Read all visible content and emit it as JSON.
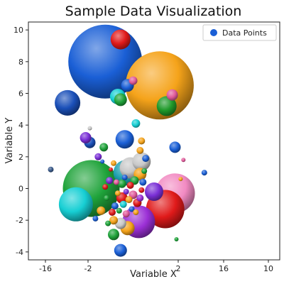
{
  "chart_data": {
    "type": "scatter",
    "title": "Sample Data Visualization",
    "xlabel": "Variable X",
    "ylabel": "Variable Y",
    "x_ticks": [
      "-16",
      "-2",
      "2",
      "16",
      "10"
    ],
    "y_ticks": [
      -4,
      -2,
      0,
      2,
      4,
      6,
      8,
      10
    ],
    "ylim": [
      -4.5,
      10.5
    ],
    "legend": {
      "label": "Data Points",
      "placement": "top-right",
      "color": "#1a5fd6"
    },
    "grid": false,
    "x_scale": "irregular tick labels",
    "points": [
      {
        "x": -3.5,
        "y": 8.0,
        "size": 52,
        "color": "#1a5fd6"
      },
      {
        "x": 0.4,
        "y": 6.5,
        "size": 48,
        "color": "#f5a31a"
      },
      {
        "x": -4.5,
        "y": 0.0,
        "size": 40,
        "color": "#1fa33a"
      },
      {
        "x": 0.8,
        "y": -1.3,
        "size": 27,
        "color": "#e01a1a"
      },
      {
        "x": -5.6,
        "y": -1.0,
        "size": 24,
        "color": "#17cfd4"
      },
      {
        "x": 1.5,
        "y": -0.3,
        "size": 28,
        "color": "#f28ac2"
      },
      {
        "x": -1.1,
        "y": -2.1,
        "size": 23,
        "color": "#9b2fd6"
      },
      {
        "x": -6.2,
        "y": 5.4,
        "size": 18,
        "color": "#1a4fb8"
      },
      {
        "x": -2.0,
        "y": 1.0,
        "size": 18,
        "color": "#1ea0b0"
      },
      {
        "x": -2.4,
        "y": 9.4,
        "size": 14,
        "color": "#e01a1a"
      },
      {
        "x": 0.9,
        "y": 5.2,
        "size": 14,
        "color": "#1f9a2a"
      },
      {
        "x": -2.1,
        "y": 3.1,
        "size": 13,
        "color": "#1a5fd6"
      },
      {
        "x": -1.7,
        "y": 1.3,
        "size": 15,
        "color": "#c8c8c8"
      },
      {
        "x": -0.9,
        "y": 1.7,
        "size": 13,
        "color": "#c8c8c8"
      },
      {
        "x": -2.6,
        "y": 5.8,
        "size": 11,
        "color": "#17cfd4"
      },
      {
        "x": 0.0,
        "y": -0.2,
        "size": 13,
        "color": "#7a2fd6"
      },
      {
        "x": -1.9,
        "y": -2.5,
        "size": 10,
        "color": "#f5a31a"
      },
      {
        "x": 1.3,
        "y": 5.9,
        "size": 8,
        "color": "#e05a9a"
      },
      {
        "x": 1.5,
        "y": 2.6,
        "size": 8,
        "color": "#1a5fd6"
      },
      {
        "x": -4.6,
        "y": 2.9,
        "size": 8,
        "color": "#1a4fb8"
      },
      {
        "x": -4.9,
        "y": 3.2,
        "size": 8,
        "color": "#7a2fd6"
      },
      {
        "x": -3.6,
        "y": 2.6,
        "size": 6,
        "color": "#1fa33a"
      },
      {
        "x": -1.9,
        "y": 6.5,
        "size": 9,
        "color": "#1a5fd6"
      },
      {
        "x": -2.4,
        "y": 5.6,
        "size": 9,
        "color": "#1fa33a"
      },
      {
        "x": -1.0,
        "y": 0.9,
        "size": 9,
        "color": "#f5a31a"
      },
      {
        "x": -2.3,
        "y": -0.6,
        "size": 8,
        "color": "#e01a1a"
      },
      {
        "x": -2.4,
        "y": -2.2,
        "size": 8,
        "color": "#c8c8c8"
      },
      {
        "x": -2.9,
        "y": -2.9,
        "size": 8,
        "color": "#1fa33a"
      },
      {
        "x": -2.4,
        "y": -3.9,
        "size": 9,
        "color": "#1a5fd6"
      },
      {
        "x": -3.8,
        "y": -1.4,
        "size": 6,
        "color": "#f5a31a"
      },
      {
        "x": -2.9,
        "y": -2.0,
        "size": 6,
        "color": "#f5a31a"
      },
      {
        "x": -1.5,
        "y": 6.8,
        "size": 6,
        "color": "#e05a9a"
      },
      {
        "x": -1.3,
        "y": 4.1,
        "size": 6,
        "color": "#17cfd4"
      },
      {
        "x": -2.3,
        "y": 0.3,
        "size": 6,
        "color": "#1fa33a"
      },
      {
        "x": -1.5,
        "y": -0.4,
        "size": 6,
        "color": "#e05a9a"
      },
      {
        "x": -1.4,
        "y": 0.5,
        "size": 6,
        "color": "#1fa33a"
      },
      {
        "x": -1.2,
        "y": -0.9,
        "size": 6,
        "color": "#e01a1a"
      },
      {
        "x": -2.2,
        "y": -1.0,
        "size": 5,
        "color": "#17cfd4"
      },
      {
        "x": -2.0,
        "y": -1.6,
        "size": 5,
        "color": "#e05a9a"
      },
      {
        "x": -2.8,
        "y": -1.1,
        "size": 5,
        "color": "#1a5fd6"
      },
      {
        "x": -3.0,
        "y": -1.5,
        "size": 5,
        "color": "#e01a1a"
      },
      {
        "x": -1.8,
        "y": -0.7,
        "size": 5,
        "color": "#f5a31a"
      },
      {
        "x": -3.2,
        "y": 0.5,
        "size": 5,
        "color": "#7a2fd6"
      },
      {
        "x": -1.7,
        "y": 0.2,
        "size": 5,
        "color": "#e01a1a"
      },
      {
        "x": -1.0,
        "y": -0.6,
        "size": 5,
        "color": "#9b2fd6"
      },
      {
        "x": -0.8,
        "y": 0.4,
        "size": 5,
        "color": "#1a5fd6"
      },
      {
        "x": -3.4,
        "y": -0.6,
        "size": 4,
        "color": "#1fa33a"
      },
      {
        "x": -2.6,
        "y": -0.3,
        "size": 4,
        "color": "#f5a31a"
      },
      {
        "x": -2.0,
        "y": -0.2,
        "size": 4,
        "color": "#7a2fd6"
      },
      {
        "x": -2.7,
        "y": 0.4,
        "size": 4,
        "color": "#e05a9a"
      },
      {
        "x": -1.6,
        "y": -1.3,
        "size": 4,
        "color": "#1a5fd6"
      },
      {
        "x": -2.5,
        "y": -1.4,
        "size": 4,
        "color": "#1fa33a"
      },
      {
        "x": -3.3,
        "y": -2.2,
        "size": 4,
        "color": "#1fa33a"
      },
      {
        "x": -1.3,
        "y": -1.5,
        "size": 4,
        "color": "#f5a31a"
      },
      {
        "x": -0.9,
        "y": -0.1,
        "size": 4,
        "color": "#e01a1a"
      },
      {
        "x": -3.5,
        "y": 0.1,
        "size": 4,
        "color": "#e01a1a"
      },
      {
        "x": -2.1,
        "y": 0.7,
        "size": 4,
        "color": "#1a5fd6"
      },
      {
        "x": -4.2,
        "y": -1.9,
        "size": 4,
        "color": "#1a5fd6"
      },
      {
        "x": -2.9,
        "y": 1.6,
        "size": 4,
        "color": "#f5a31a"
      },
      {
        "x": -0.7,
        "y": 1.1,
        "size": 4,
        "color": "#1fa33a"
      },
      {
        "x": -3.1,
        "y": 1.2,
        "size": 3,
        "color": "#e01a1a"
      },
      {
        "x": -3.7,
        "y": 1.7,
        "size": 3,
        "color": "#1a5fd6"
      },
      {
        "x": 2.1,
        "y": 1.8,
        "size": 3,
        "color": "#e05a9a"
      },
      {
        "x": 1.9,
        "y": 0.6,
        "size": 3,
        "color": "#f5a31a"
      },
      {
        "x": 1.6,
        "y": -3.2,
        "size": 3,
        "color": "#1fa33a"
      },
      {
        "x": -4.6,
        "y": 3.8,
        "size": 3,
        "color": "#c8c8c8"
      },
      {
        "x": 3.6,
        "y": 1.0,
        "size": 4,
        "color": "#1a5fd6"
      },
      {
        "x": -7.4,
        "y": 1.2,
        "size": 4,
        "color": "#3a5a8a"
      },
      {
        "x": -4.0,
        "y": 2.0,
        "size": 5,
        "color": "#7a2fd6"
      },
      {
        "x": -1.0,
        "y": 2.4,
        "size": 5,
        "color": "#f5a31a"
      },
      {
        "x": -0.9,
        "y": 3.0,
        "size": 5,
        "color": "#f5a31a"
      },
      {
        "x": -0.6,
        "y": 1.9,
        "size": 5,
        "color": "#1a5fd6"
      }
    ]
  }
}
